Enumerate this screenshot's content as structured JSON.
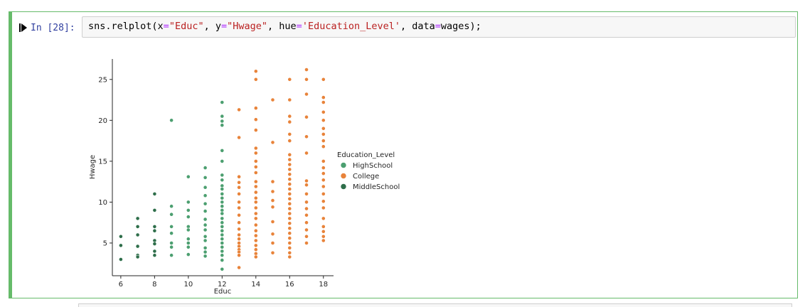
{
  "cell": {
    "prompt": "In [28]:",
    "code": {
      "prefix": "sns.relplot(x",
      "eq": "=",
      "x_str": "\"Educ\"",
      "sep1": ", y",
      "y_str": "\"Hwage\"",
      "sep2": ", hue",
      "hue_str": "'Education_Level'",
      "sep3": ", data",
      "suffix": "wages);"
    }
  },
  "colors": {
    "highschool": "#4c9f70",
    "college": "#e8833a",
    "middleschool": "#2e6e4a",
    "cell_border": "#66bb6a"
  },
  "chart_data": {
    "type": "scatter",
    "xlabel": "Educ",
    "ylabel": "Hwage",
    "xlim": [
      5.5,
      18.6
    ],
    "ylim": [
      1.0,
      27.5
    ],
    "xticks": [
      6,
      8,
      10,
      12,
      14,
      16,
      18
    ],
    "yticks": [
      5,
      10,
      15,
      20,
      25
    ],
    "legend_title": "Education_Level",
    "legend_position": "right",
    "series": [
      {
        "name": "HighSchool",
        "color": "#4c9f70",
        "points": [
          [
            9,
            20.0
          ],
          [
            9,
            9.5
          ],
          [
            9,
            8.5
          ],
          [
            9,
            7.0
          ],
          [
            9,
            6.2
          ],
          [
            9,
            5.0
          ],
          [
            9,
            4.5
          ],
          [
            9,
            3.5
          ],
          [
            10,
            13.1
          ],
          [
            10,
            10.0
          ],
          [
            10,
            9.0
          ],
          [
            10,
            8.2
          ],
          [
            10,
            7.0
          ],
          [
            10,
            6.6
          ],
          [
            10,
            5.5
          ],
          [
            10,
            5.0
          ],
          [
            10,
            4.5
          ],
          [
            10,
            3.6
          ],
          [
            11,
            14.2
          ],
          [
            11,
            13.0
          ],
          [
            11,
            11.8
          ],
          [
            11,
            10.8
          ],
          [
            11,
            9.8
          ],
          [
            11,
            8.9
          ],
          [
            11,
            7.9
          ],
          [
            11,
            7.2
          ],
          [
            11,
            6.6
          ],
          [
            11,
            5.8
          ],
          [
            11,
            5.3
          ],
          [
            11,
            4.4
          ],
          [
            11,
            3.9
          ],
          [
            11,
            3.4
          ],
          [
            12,
            22.2
          ],
          [
            12,
            20.5
          ],
          [
            12,
            19.9
          ],
          [
            12,
            19.4
          ],
          [
            12,
            16.3
          ],
          [
            12,
            15.0
          ],
          [
            12,
            13.3
          ],
          [
            12,
            12.7
          ],
          [
            12,
            12.0
          ],
          [
            12,
            11.6
          ],
          [
            12,
            11.0
          ],
          [
            12,
            10.5
          ],
          [
            12,
            10.0
          ],
          [
            12,
            9.5
          ],
          [
            12,
            9.0
          ],
          [
            12,
            8.6
          ],
          [
            12,
            8.0
          ],
          [
            12,
            7.5
          ],
          [
            12,
            7.0
          ],
          [
            12,
            6.5
          ],
          [
            12,
            6.0
          ],
          [
            12,
            5.5
          ],
          [
            12,
            5.0
          ],
          [
            12,
            4.5
          ],
          [
            12,
            4.0
          ],
          [
            12,
            3.5
          ],
          [
            12,
            2.9
          ],
          [
            12,
            1.8
          ]
        ]
      },
      {
        "name": "College",
        "color": "#e8833a",
        "points": [
          [
            13,
            21.3
          ],
          [
            13,
            17.9
          ],
          [
            13,
            13.1
          ],
          [
            13,
            12.4
          ],
          [
            13,
            11.8
          ],
          [
            13,
            11.0
          ],
          [
            13,
            10.0
          ],
          [
            13,
            9.3
          ],
          [
            13,
            8.4
          ],
          [
            13,
            7.5
          ],
          [
            13,
            6.7
          ],
          [
            13,
            6.0
          ],
          [
            13,
            5.5
          ],
          [
            13,
            5.0
          ],
          [
            13,
            4.6
          ],
          [
            13,
            4.2
          ],
          [
            13,
            3.9
          ],
          [
            13,
            3.5
          ],
          [
            13,
            2.0
          ],
          [
            14,
            26.0
          ],
          [
            14,
            25.0
          ],
          [
            14,
            21.5
          ],
          [
            14,
            20.1
          ],
          [
            14,
            18.8
          ],
          [
            14,
            16.6
          ],
          [
            14,
            16.0
          ],
          [
            14,
            15.0
          ],
          [
            14,
            14.3
          ],
          [
            14,
            13.6
          ],
          [
            14,
            12.5
          ],
          [
            14,
            11.9
          ],
          [
            14,
            11.2
          ],
          [
            14,
            10.5
          ],
          [
            14,
            10.0
          ],
          [
            14,
            9.3
          ],
          [
            14,
            8.6
          ],
          [
            14,
            8.0
          ],
          [
            14,
            7.2
          ],
          [
            14,
            6.5
          ],
          [
            14,
            5.9
          ],
          [
            14,
            5.3
          ],
          [
            14,
            4.7
          ],
          [
            14,
            4.2
          ],
          [
            14,
            3.7
          ],
          [
            14,
            3.3
          ],
          [
            15,
            22.5
          ],
          [
            15,
            17.3
          ],
          [
            15,
            12.5
          ],
          [
            15,
            11.3
          ],
          [
            15,
            10.2
          ],
          [
            15,
            9.4
          ],
          [
            15,
            7.6
          ],
          [
            15,
            6.1
          ],
          [
            15,
            5.0
          ],
          [
            15,
            3.8
          ],
          [
            16,
            25.0
          ],
          [
            16,
            22.5
          ],
          [
            16,
            20.5
          ],
          [
            16,
            19.8
          ],
          [
            16,
            18.3
          ],
          [
            16,
            17.5
          ],
          [
            16,
            15.8
          ],
          [
            16,
            15.2
          ],
          [
            16,
            14.6
          ],
          [
            16,
            14.0
          ],
          [
            16,
            13.4
          ],
          [
            16,
            12.8
          ],
          [
            16,
            12.2
          ],
          [
            16,
            11.6
          ],
          [
            16,
            11.0
          ],
          [
            16,
            10.4
          ],
          [
            16,
            9.8
          ],
          [
            16,
            9.2
          ],
          [
            16,
            8.6
          ],
          [
            16,
            8.0
          ],
          [
            16,
            7.4
          ],
          [
            16,
            6.8
          ],
          [
            16,
            6.2
          ],
          [
            16,
            5.6
          ],
          [
            16,
            5.0
          ],
          [
            16,
            4.4
          ],
          [
            16,
            3.8
          ],
          [
            16,
            3.3
          ],
          [
            17,
            26.2
          ],
          [
            17,
            25.0
          ],
          [
            17,
            23.2
          ],
          [
            17,
            20.4
          ],
          [
            17,
            18.0
          ],
          [
            17,
            16.0
          ],
          [
            17,
            12.6
          ],
          [
            17,
            12.1
          ],
          [
            17,
            11.0
          ],
          [
            17,
            10.0
          ],
          [
            17,
            9.2
          ],
          [
            17,
            8.4
          ],
          [
            17,
            7.5
          ],
          [
            17,
            6.6
          ],
          [
            17,
            5.8
          ],
          [
            17,
            5.0
          ],
          [
            18,
            25.0
          ],
          [
            18,
            22.8
          ],
          [
            18,
            22.2
          ],
          [
            18,
            21.0
          ],
          [
            18,
            20.0
          ],
          [
            18,
            19.0
          ],
          [
            18,
            18.3
          ],
          [
            18,
            17.5
          ],
          [
            18,
            16.8
          ],
          [
            18,
            15.0
          ],
          [
            18,
            14.2
          ],
          [
            18,
            13.5
          ],
          [
            18,
            12.7
          ],
          [
            18,
            11.9
          ],
          [
            18,
            11.0
          ],
          [
            18,
            10.1
          ],
          [
            18,
            9.3
          ],
          [
            18,
            8.0
          ],
          [
            18,
            7.0
          ],
          [
            18,
            6.4
          ],
          [
            18,
            5.8
          ],
          [
            18,
            5.3
          ]
        ]
      },
      {
        "name": "MiddleSchool",
        "color": "#2e6e4a",
        "points": [
          [
            6,
            5.8
          ],
          [
            6,
            4.7
          ],
          [
            6,
            3.0
          ],
          [
            7,
            8.0
          ],
          [
            7,
            7.0
          ],
          [
            7,
            6.0
          ],
          [
            7,
            4.6
          ],
          [
            7,
            3.5
          ],
          [
            7,
            3.3
          ],
          [
            8,
            11.0
          ],
          [
            8,
            9.0
          ],
          [
            8,
            7.0
          ],
          [
            8,
            6.5
          ],
          [
            8,
            5.3
          ],
          [
            8,
            4.9
          ],
          [
            8,
            4.0
          ],
          [
            8,
            3.5
          ]
        ]
      }
    ]
  }
}
